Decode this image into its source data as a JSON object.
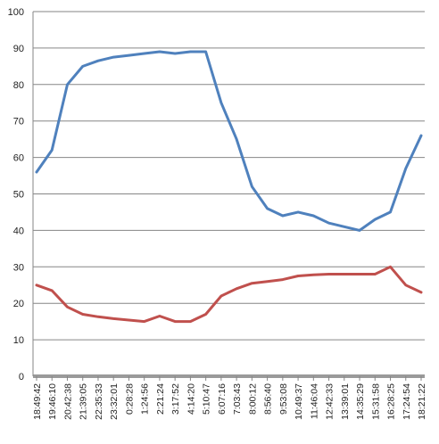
{
  "chart_data": {
    "type": "line",
    "title": "",
    "xlabel": "",
    "ylabel": "",
    "ylim": [
      0,
      100
    ],
    "ytick_step": 10,
    "grid": "horizontal",
    "legend": "none",
    "x": [
      "18:49:42",
      "19:46:10",
      "20:42:38",
      "21:39:05",
      "22:35:33",
      "23:32:01",
      "0:28:28",
      "1:24:56",
      "2:21:24",
      "3:17:52",
      "4:14:20",
      "5:10:47",
      "6:07:16",
      "7:03:43",
      "8:00:12",
      "8:56:40",
      "9:53:08",
      "10:49:37",
      "11:46:04",
      "12:42:33",
      "13:39:01",
      "14:35:29",
      "15:31:58",
      "16:28:25",
      "17:24:54",
      "18:21:22"
    ],
    "series": [
      {
        "color": "#4f81bd",
        "values": [
          56,
          62,
          80,
          85,
          86.5,
          87.5,
          88,
          88.5,
          89,
          88.5,
          89,
          89,
          75,
          65,
          52,
          46,
          44,
          45,
          44,
          42,
          41,
          40,
          43,
          45,
          57,
          66
        ]
      },
      {
        "color": "#c0504d",
        "values": [
          25,
          23.5,
          19,
          17,
          16.3,
          15.8,
          15.4,
          15,
          16.5,
          15,
          15,
          17,
          22,
          24,
          25.5,
          26,
          26.5,
          27.5,
          27.8,
          28,
          28,
          28,
          28,
          30,
          25,
          23
        ]
      }
    ]
  }
}
